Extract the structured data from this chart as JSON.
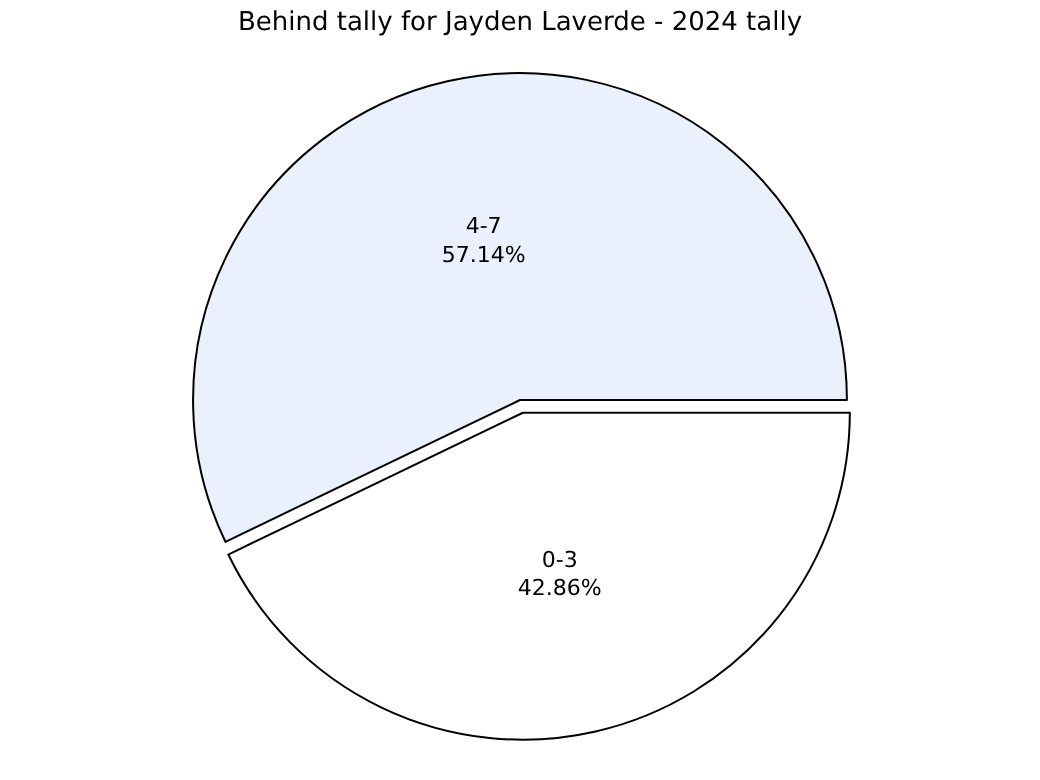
{
  "chart_data": {
    "type": "pie",
    "title": "Behind tally for Jayden Laverde - 2024 tally",
    "categories": [
      "0-3",
      "4-7"
    ],
    "values": [
      42.86,
      57.14
    ],
    "value_labels": [
      "42.86%",
      "57.14%"
    ],
    "colors": [
      "#ffffff",
      "#eaf0fc"
    ],
    "legend": false
  }
}
